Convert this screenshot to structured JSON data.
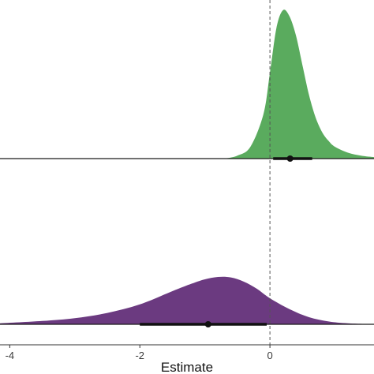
{
  "chart_data": {
    "type": "area",
    "chart_kind": "half-eye density (posterior distributions with point estimate and interval)",
    "xlabel": "Estimate",
    "ylabel": "",
    "xlim": [
      -4.15,
      1.6
    ],
    "x_ticks": [
      -4,
      -2,
      0
    ],
    "x_tick_labels": [
      "-4",
      "-2",
      "0"
    ],
    "reference_line": {
      "x": 0,
      "style": "dashed"
    },
    "grid": false,
    "legend": "none",
    "series": [
      {
        "color": "#5aab5e",
        "x": [
          -0.7,
          -0.5,
          -0.3,
          -0.1,
          0.0,
          0.1,
          0.2,
          0.3,
          0.4,
          0.5,
          0.6,
          0.7,
          0.8,
          0.9,
          1.0,
          1.2,
          1.4,
          1.6
        ],
        "density": [
          0.0,
          0.02,
          0.08,
          0.3,
          0.58,
          0.88,
          1.0,
          0.96,
          0.83,
          0.63,
          0.43,
          0.28,
          0.18,
          0.12,
          0.08,
          0.04,
          0.02,
          0.01
        ],
        "point_estimate": 0.31,
        "interval": [
          0.05,
          0.65
        ]
      },
      {
        "color": "#6b3a80",
        "x": [
          -4.15,
          -3.5,
          -3.0,
          -2.5,
          -2.0,
          -1.5,
          -1.2,
          -1.0,
          -0.8,
          -0.6,
          -0.4,
          -0.2,
          0.0,
          0.3,
          0.6,
          0.9,
          1.2,
          1.6
        ],
        "density": [
          0.02,
          0.07,
          0.13,
          0.24,
          0.42,
          0.7,
          0.86,
          0.95,
          1.0,
          0.99,
          0.9,
          0.75,
          0.55,
          0.32,
          0.15,
          0.06,
          0.02,
          0.0
        ],
        "point_estimate": -0.95,
        "interval": [
          -2.0,
          -0.05
        ]
      }
    ]
  }
}
